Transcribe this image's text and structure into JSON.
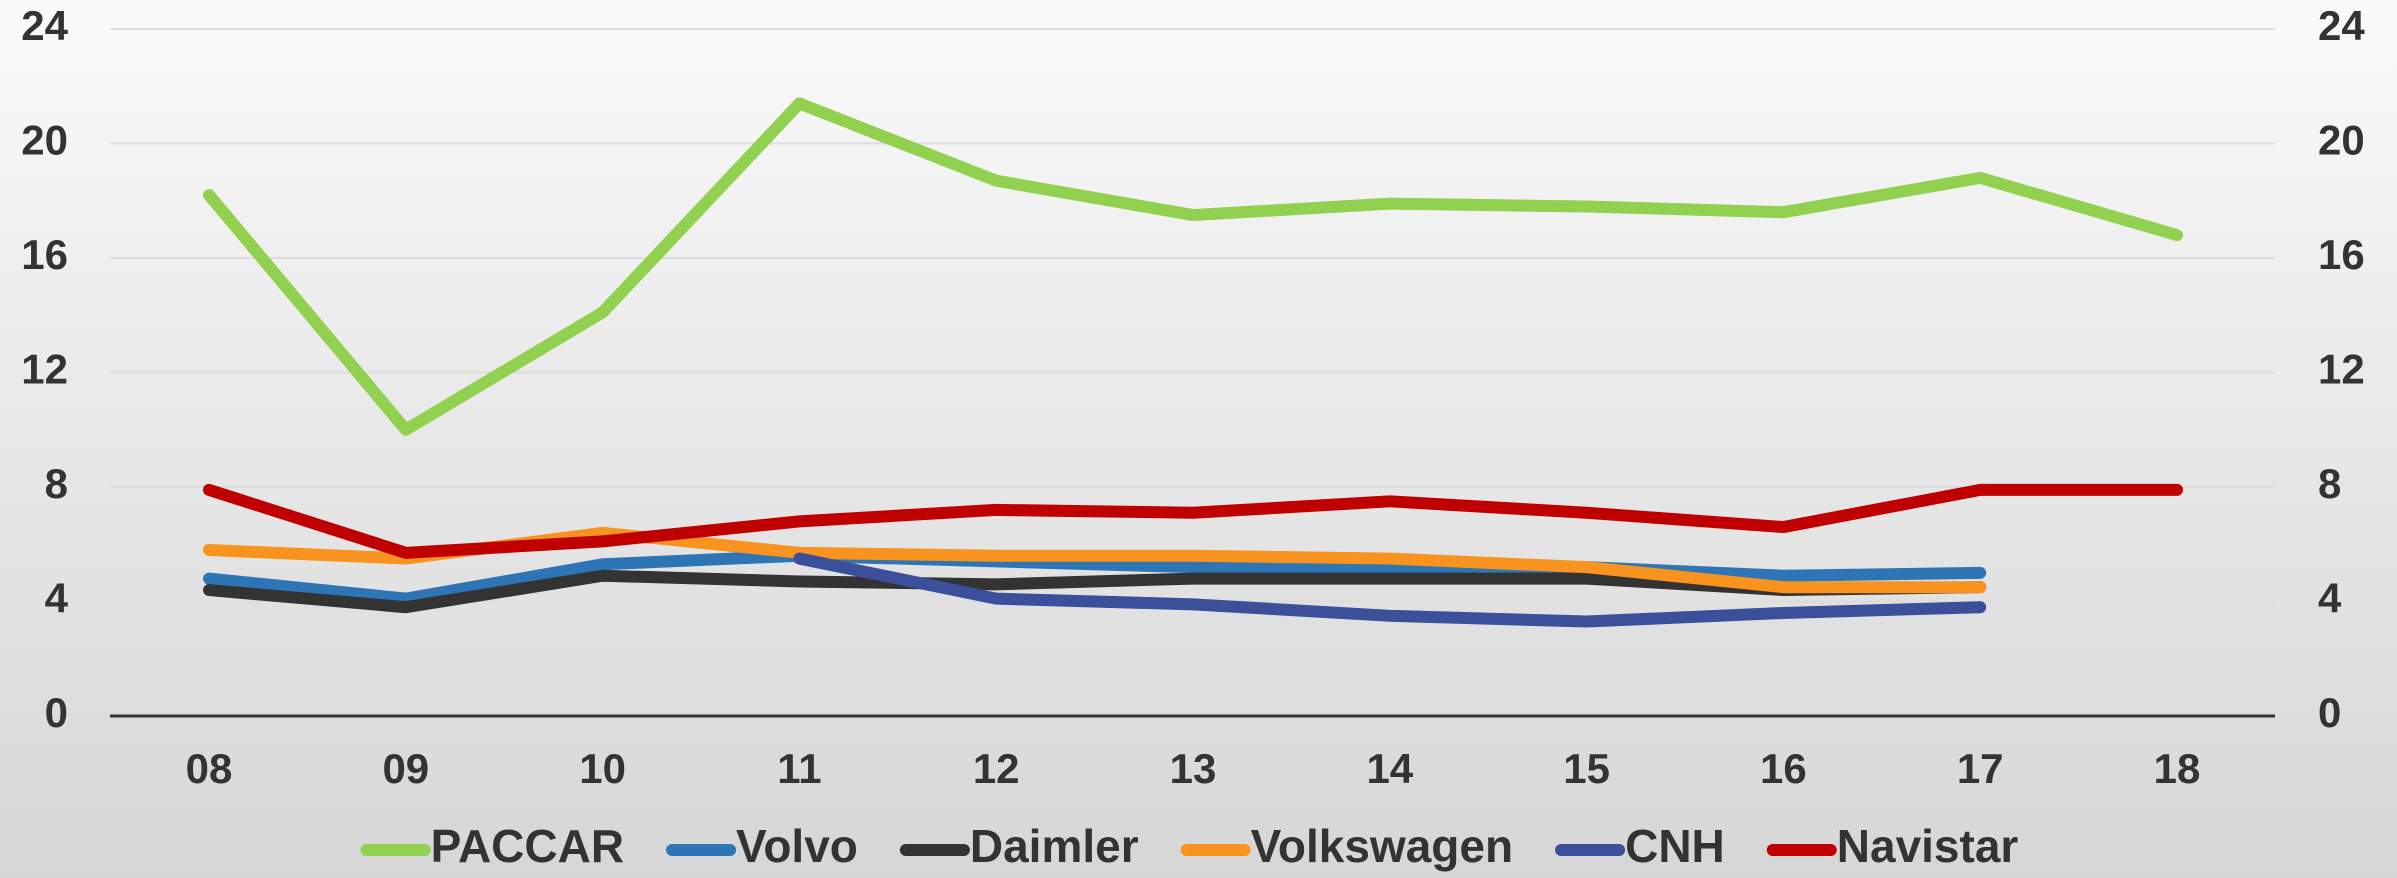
{
  "chart_data": {
    "type": "line",
    "categories": [
      "08",
      "09",
      "10",
      "11",
      "12",
      "13",
      "14",
      "15",
      "16",
      "17",
      "18"
    ],
    "series": [
      {
        "name": "PACCAR",
        "color": "#92d050",
        "values": [
          18.2,
          10.0,
          14.1,
          21.4,
          18.7,
          17.5,
          17.9,
          17.8,
          17.6,
          18.8,
          16.8
        ]
      },
      {
        "name": "Volvo",
        "color": "#2e75b6",
        "values": [
          4.8,
          4.1,
          5.3,
          5.6,
          5.4,
          5.2,
          5.1,
          5.2,
          4.9,
          5.0,
          null
        ]
      },
      {
        "name": "Daimler",
        "color": "#333333",
        "values": [
          4.4,
          3.8,
          4.9,
          4.7,
          4.6,
          4.8,
          4.8,
          4.8,
          4.4,
          4.5,
          null
        ]
      },
      {
        "name": "Volkswagen",
        "color": "#f7931e",
        "values": [
          5.8,
          5.5,
          6.4,
          5.7,
          5.6,
          5.6,
          5.5,
          5.2,
          4.5,
          4.5,
          null
        ]
      },
      {
        "name": "CNH",
        "color": "#3b4f9a",
        "values": [
          null,
          null,
          null,
          5.5,
          4.1,
          3.9,
          3.5,
          3.3,
          3.6,
          3.8,
          null
        ]
      },
      {
        "name": "Navistar",
        "color": "#c00000",
        "values": [
          7.9,
          5.7,
          6.1,
          6.8,
          7.2,
          7.1,
          7.5,
          7.1,
          6.6,
          7.9,
          7.9
        ]
      }
    ],
    "ylim": [
      0,
      24
    ],
    "yticks": [
      0,
      4,
      8,
      12,
      16,
      20,
      24
    ],
    "y2lim": [
      0,
      24
    ],
    "y2ticks": [
      0,
      4,
      8,
      12,
      16,
      20,
      24
    ],
    "grid": true,
    "legend": "bottom"
  }
}
